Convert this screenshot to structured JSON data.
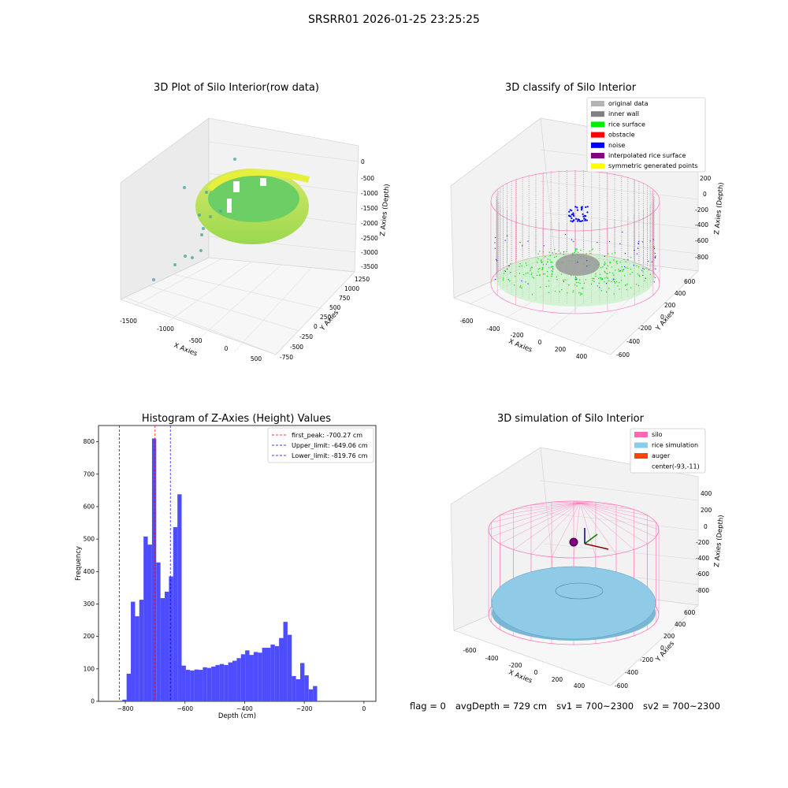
{
  "suptitle": "SRSRR01 2026-01-25 23:25:25",
  "colors": {
    "original": "#b3b3b3",
    "inner_wall": "#808080",
    "rice_surface": "#00ee00",
    "obstacle": "#ff0000",
    "noise": "#0000ff",
    "interp": "#800080",
    "symmetric": "#ffff00",
    "silo": "#ff69b4",
    "rice_sim": "#87ceeb",
    "auger": "#ff4500",
    "hist_bar": "#4d4dff"
  },
  "chart_data": [
    {
      "type": "scatter",
      "title": "3D Plot of Silo Interior(row data)",
      "xlabel": "X Axies",
      "ylabel": "Y Axies",
      "zlabel": "Z Axies (Depth)",
      "x_ticks": [
        "-1500",
        "-1000",
        "-500",
        "0",
        "500"
      ],
      "y_ticks": [
        "-750",
        "-500",
        "-250",
        "0",
        "250",
        "500",
        "750",
        "1000",
        "1250"
      ],
      "z_ticks": [
        "0",
        "-500",
        "-1000",
        "-1500",
        "-2000",
        "-2500",
        "-3000",
        "-3500"
      ]
    },
    {
      "type": "scatter",
      "title": "3D classify of Silo Interior",
      "xlabel": "X Axies",
      "ylabel": "Y Axies",
      "zlabel": "Z Axies (Depth)",
      "x_ticks": [
        "-600",
        "-400",
        "-200",
        "0",
        "200",
        "400"
      ],
      "y_ticks": [
        "-600",
        "-400",
        "-200",
        "0",
        "200",
        "400",
        "600"
      ],
      "z_ticks": [
        "200",
        "0",
        "-200",
        "-400",
        "-600",
        "-800"
      ],
      "legend": [
        {
          "label": "original data",
          "color": "#b3b3b3"
        },
        {
          "label": "inner wall",
          "color": "#808080"
        },
        {
          "label": "rice surface",
          "color": "#00ee00"
        },
        {
          "label": "obstacle",
          "color": "#ff0000"
        },
        {
          "label": "noise",
          "color": "#0000ff"
        },
        {
          "label": "interpolated rice surface",
          "color": "#800080"
        },
        {
          "label": "symmetric generated points",
          "color": "#ffff00"
        }
      ]
    },
    {
      "type": "bar",
      "title": "Histogram of Z-Axies (Height) Values",
      "xlabel": "Depth (cm)",
      "ylabel": "Frequency",
      "xlim": [
        -890,
        40
      ],
      "ylim": [
        0,
        850
      ],
      "x_ticks": [
        -800,
        -600,
        -400,
        -200,
        0
      ],
      "x_tick_labels": [
        "−800",
        "−600",
        "−400",
        "−200",
        "0"
      ],
      "y_ticks": [
        0,
        100,
        200,
        300,
        400,
        500,
        600,
        700,
        800
      ],
      "bin_start": -810,
      "bin_width": 14.2,
      "values": [
        5,
        85,
        307,
        262,
        313,
        508,
        483,
        810,
        428,
        318,
        338,
        385,
        537,
        638,
        110,
        97,
        95,
        98,
        97,
        105,
        103,
        107,
        112,
        115,
        112,
        120,
        125,
        133,
        145,
        157,
        143,
        152,
        150,
        165,
        165,
        175,
        170,
        195,
        245,
        205,
        78,
        68,
        118,
        80,
        37,
        47
      ],
      "lines": [
        {
          "label": "first_peak: -700.27 cm",
          "value": -700.27,
          "color": "#ff0000"
        },
        {
          "label": "Upper_limit: -649.06 cm",
          "value": -649.06,
          "color": "#0000ff"
        },
        {
          "label": "Lower_limit: -819.76 cm",
          "value": -819.76,
          "color": "#0000ff"
        }
      ]
    },
    {
      "type": "scatter",
      "title": "3D simulation of Silo Interior",
      "xlabel": "X Axies",
      "ylabel": "Y Axies",
      "zlabel": "Z Axies (Depth)",
      "x_ticks": [
        "-600",
        "-400",
        "-200",
        "0",
        "200",
        "400"
      ],
      "y_ticks": [
        "-600",
        "-400",
        "-200",
        "0",
        "200",
        "400",
        "600"
      ],
      "z_ticks": [
        "400",
        "200",
        "0",
        "-200",
        "-400",
        "-600",
        "-800"
      ],
      "legend": [
        {
          "label": "silo",
          "color": "#ff69b4"
        },
        {
          "label": "rice simulation",
          "color": "#87ceeb"
        },
        {
          "label": "auger",
          "color": "#ff4500"
        },
        {
          "label": "center(-93,-11)",
          "color": ""
        }
      ]
    }
  ],
  "status": {
    "flag": "flag = 0",
    "avg_depth": "avgDepth = 729 cm",
    "sv1": "sv1 = 700~2300",
    "sv2": "sv2 = 700~2300"
  }
}
